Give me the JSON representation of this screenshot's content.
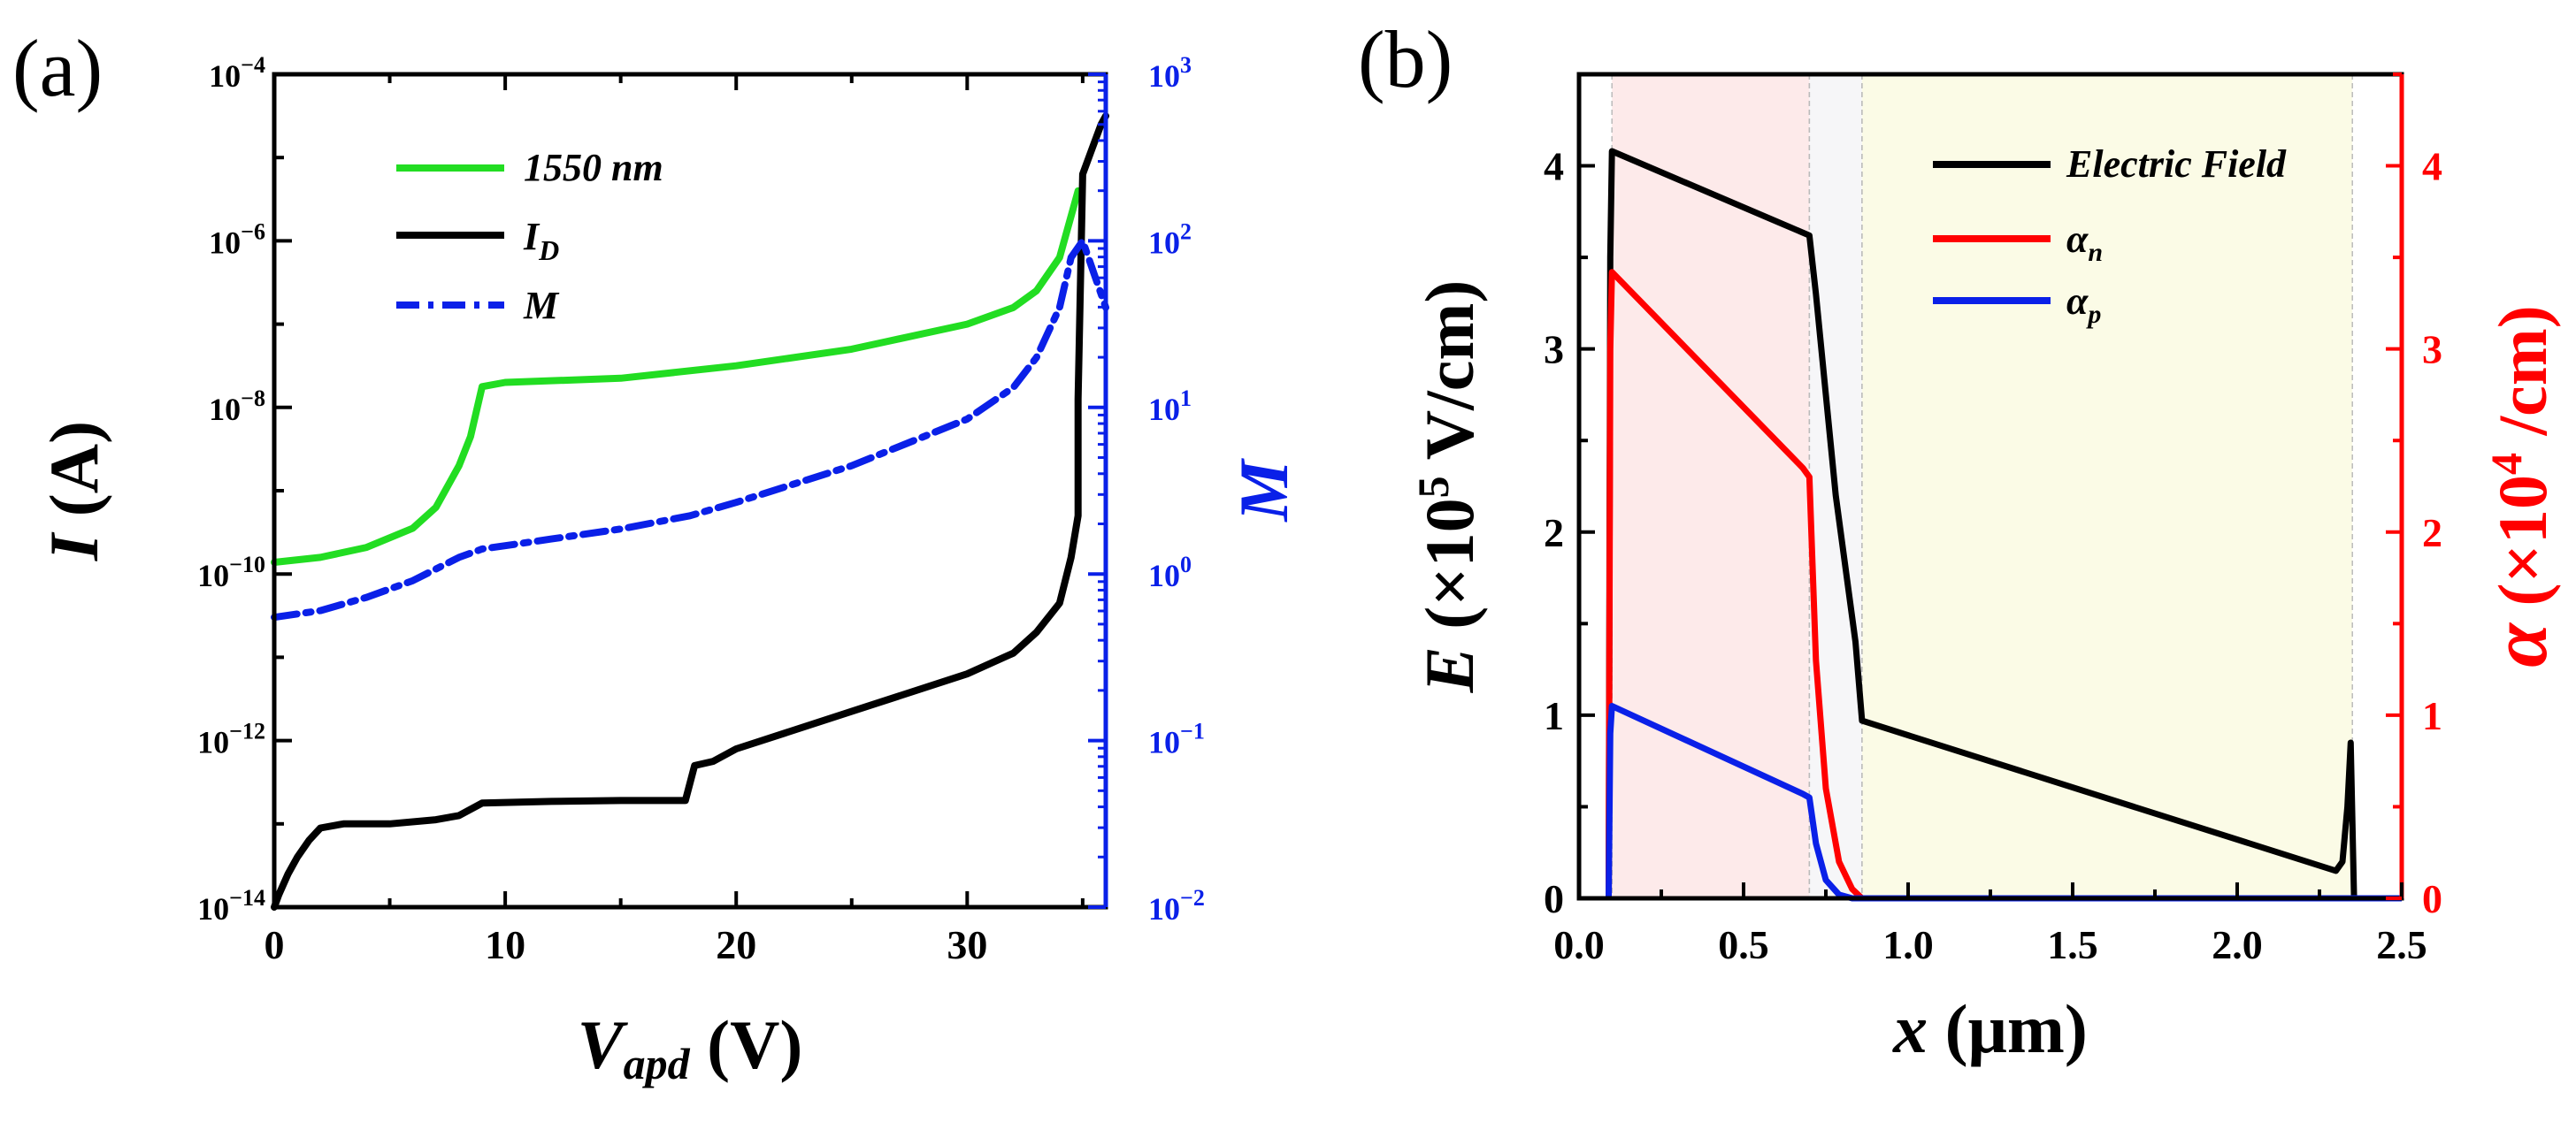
{
  "chart_data": [
    {
      "type": "line",
      "panel": "(a)",
      "xlabel": {
        "main": "V",
        "sub": "apd",
        "unit": " (V)"
      },
      "ylabel": {
        "main": "I",
        "unit": " (A)"
      },
      "y2label": "M",
      "xlim": [
        0,
        36
      ],
      "ylim_log10": [
        -14,
        -4
      ],
      "y2lim_log10": [
        -2,
        3
      ],
      "y_scale": "log",
      "y2_scale": "log",
      "x_ticks": [
        "0",
        "10",
        "20",
        "30"
      ],
      "y_ticks": [
        {
          "base": "10",
          "exp": "−4"
        },
        {
          "base": "10",
          "exp": "−6"
        },
        {
          "base": "10",
          "exp": "−8"
        },
        {
          "base": "10",
          "exp": "−10"
        },
        {
          "base": "10",
          "exp": "−12"
        },
        {
          "base": "10",
          "exp": "−14"
        }
      ],
      "y2_ticks": [
        {
          "base": "10",
          "exp": "3"
        },
        {
          "base": "10",
          "exp": "2"
        },
        {
          "base": "10",
          "exp": "1"
        },
        {
          "base": "10",
          "exp": "0"
        },
        {
          "base": "10",
          "exp": "−1"
        },
        {
          "base": "10",
          "exp": "−2"
        }
      ],
      "legend": [
        {
          "main": "1550 nm",
          "sub": ""
        },
        {
          "main": "I",
          "sub": "D"
        },
        {
          "main": "M",
          "sub": ""
        }
      ],
      "series": [
        {
          "name": "1550 nm",
          "color": "#22dd22",
          "axis": "left",
          "dash": "solid",
          "x": [
            0,
            2,
            4,
            6,
            7,
            8,
            8.5,
            9,
            10,
            15,
            20,
            25,
            30,
            32,
            33,
            34,
            34.8
          ],
          "values_log10": [
            -9.86,
            -9.8,
            -9.68,
            -9.45,
            -9.2,
            -8.7,
            -8.35,
            -7.75,
            -7.7,
            -7.65,
            -7.5,
            -7.3,
            -7.0,
            -6.8,
            -6.6,
            -6.2,
            -5.4
          ]
        },
        {
          "name": "I_D",
          "color": "#000000",
          "axis": "left",
          "dash": "solid",
          "x": [
            0,
            0.2,
            0.6,
            1,
            1.5,
            2,
            3,
            5,
            7,
            8,
            9,
            12,
            15,
            17,
            17.8,
            18.2,
            19,
            20,
            25,
            30,
            32,
            33,
            34,
            34.5,
            34.8,
            34.8,
            35,
            35.4,
            35.8,
            36
          ],
          "values_log10": [
            -14,
            -13.85,
            -13.6,
            -13.4,
            -13.2,
            -13.05,
            -13.0,
            -13.0,
            -12.95,
            -12.9,
            -12.75,
            -12.73,
            -12.72,
            -12.72,
            -12.72,
            -12.3,
            -12.25,
            -12.1,
            -11.65,
            -11.2,
            -10.95,
            -10.7,
            -10.35,
            -9.8,
            -9.3,
            -7.9,
            -5.2,
            -4.9,
            -4.6,
            -4.5
          ]
        },
        {
          "name": "M",
          "color": "#0a20e8",
          "axis": "right",
          "dash": "dashdot",
          "x": [
            0,
            2,
            4,
            6,
            8,
            9,
            10,
            12,
            15,
            18,
            20,
            25,
            30,
            32,
            33,
            34,
            34.5,
            35,
            35.5,
            36
          ],
          "values_log10": [
            -0.26,
            -0.22,
            -0.14,
            -0.04,
            0.1,
            0.15,
            0.17,
            0.21,
            0.27,
            0.35,
            0.43,
            0.65,
            0.93,
            1.12,
            1.3,
            1.6,
            1.9,
            2.0,
            1.8,
            1.6
          ]
        }
      ]
    },
    {
      "type": "line",
      "panel": "(b)",
      "xlabel": {
        "main": "x",
        "unit": " (μm)"
      },
      "ylabel": {
        "main": "E",
        "unit": " (×10",
        "exp": "5",
        "tail": " V/cm)"
      },
      "y2label": {
        "main": "α",
        "unit": " (×10",
        "exp": "4",
        "tail": " /cm)"
      },
      "xlim": [
        0,
        2.5
      ],
      "ylim": [
        0,
        4.5
      ],
      "y2lim": [
        0,
        4.5
      ],
      "x_ticks": [
        "0.0",
        "0.5",
        "1.0",
        "1.5",
        "2.0",
        "2.5"
      ],
      "y_ticks": [
        "0",
        "1",
        "2",
        "3",
        "4"
      ],
      "y2_ticks": [
        "0",
        "1",
        "2",
        "3",
        "4"
      ],
      "regions": [
        {
          "x0": 0.1,
          "x1": 0.7,
          "color": "#fdeaea"
        },
        {
          "x0": 0.7,
          "x1": 0.86,
          "color": "#f6f6f8"
        },
        {
          "x0": 0.86,
          "x1": 2.35,
          "color": "#fbfbe6"
        }
      ],
      "legend": [
        {
          "main": "Electric Field",
          "sub": ""
        },
        {
          "main": "α",
          "sub": "n"
        },
        {
          "main": "α",
          "sub": "p"
        }
      ],
      "series": [
        {
          "name": "Electric Field",
          "color": "#000000",
          "axis": "left",
          "x": [
            0.09,
            0.095,
            0.1,
            0.7,
            0.72,
            0.78,
            0.84,
            0.86,
            2.3,
            2.32,
            2.335,
            2.345,
            2.355,
            2.5
          ],
          "values": [
            0,
            3.5,
            4.08,
            3.62,
            3.3,
            2.2,
            1.4,
            0.97,
            0.15,
            0.2,
            0.5,
            0.85,
            0,
            0
          ]
        },
        {
          "name": "α_n",
          "color": "#ff0000",
          "axis": "right",
          "x": [
            0.09,
            0.095,
            0.1,
            0.68,
            0.7,
            0.72,
            0.75,
            0.79,
            0.83,
            0.86,
            2.5
          ],
          "values": [
            0,
            3.0,
            3.42,
            2.35,
            2.3,
            1.3,
            0.6,
            0.2,
            0.05,
            0,
            0
          ]
        },
        {
          "name": "α_p",
          "color": "#0a20e8",
          "axis": "right",
          "x": [
            0.09,
            0.095,
            0.1,
            0.68,
            0.7,
            0.72,
            0.75,
            0.79,
            0.83,
            2.5
          ],
          "values": [
            0,
            0.9,
            1.05,
            0.57,
            0.55,
            0.3,
            0.1,
            0.02,
            0,
            0
          ]
        }
      ]
    }
  ]
}
